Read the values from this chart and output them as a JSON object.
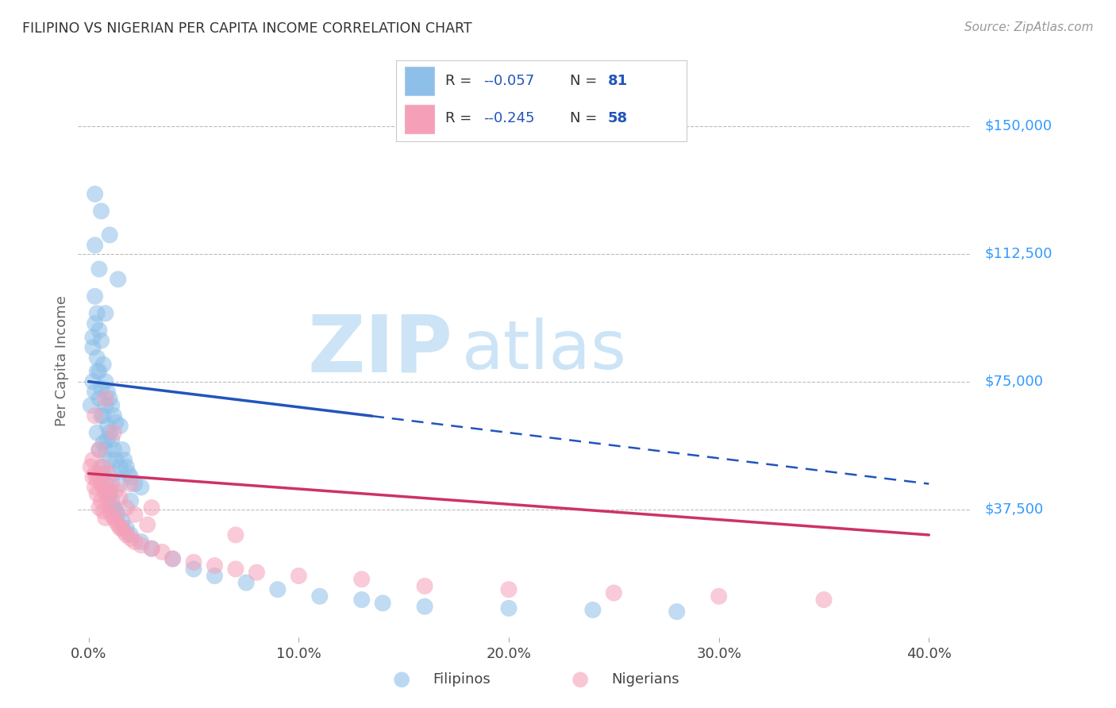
{
  "title": "FILIPINO VS NIGERIAN PER CAPITA INCOME CORRELATION CHART",
  "source": "Source: ZipAtlas.com",
  "ylabel": "Per Capita Income",
  "xtick_labels": [
    "0.0%",
    "10.0%",
    "20.0%",
    "30.0%",
    "40.0%"
  ],
  "xtick_values": [
    0.0,
    0.1,
    0.2,
    0.3,
    0.4
  ],
  "ytick_labels": [
    "$37,500",
    "$75,000",
    "$112,500",
    "$150,000"
  ],
  "ytick_values": [
    37500,
    75000,
    112500,
    150000
  ],
  "ylim": [
    0,
    162000
  ],
  "xlim": [
    -0.005,
    0.42
  ],
  "watermark_zip": "ZIP",
  "watermark_atlas": "atlas",
  "fil_label": "Filipinos",
  "nig_label": "Nigerians",
  "legend_R_fil": "-0.057",
  "legend_N_fil": "81",
  "legend_R_nig": "-0.245",
  "legend_N_nig": "58",
  "filipino_color": "#8dbfe8",
  "nigerian_color": "#f5a0b8",
  "trend_blue_color": "#2255bb",
  "trend_pink_color": "#cc3366",
  "background": "#ffffff",
  "grid_color": "#bbbbbb",
  "title_color": "#333333",
  "source_color": "#999999",
  "axis_label_color": "#666666",
  "ytick_color": "#3399ff",
  "watermark_color": "#cce4f6",
  "legend_R_color": "#2255bb",
  "legend_N_color": "#2255bb",
  "legend_label_color": "#333333",
  "fil_trend_solid_end": 0.135,
  "fil_intercept": 75000,
  "fil_slope": -75000,
  "nig_intercept": 48000,
  "nig_slope": -45000,
  "fil_x": [
    0.001,
    0.002,
    0.002,
    0.003,
    0.003,
    0.003,
    0.004,
    0.004,
    0.005,
    0.005,
    0.005,
    0.006,
    0.006,
    0.006,
    0.007,
    0.007,
    0.008,
    0.008,
    0.008,
    0.009,
    0.009,
    0.01,
    0.01,
    0.01,
    0.011,
    0.011,
    0.012,
    0.012,
    0.013,
    0.013,
    0.014,
    0.015,
    0.015,
    0.016,
    0.017,
    0.018,
    0.019,
    0.02,
    0.022,
    0.025,
    0.002,
    0.003,
    0.004,
    0.005,
    0.006,
    0.007,
    0.008,
    0.009,
    0.01,
    0.011,
    0.012,
    0.013,
    0.014,
    0.016,
    0.018,
    0.02,
    0.025,
    0.03,
    0.04,
    0.05,
    0.06,
    0.075,
    0.09,
    0.11,
    0.13,
    0.14,
    0.16,
    0.2,
    0.24,
    0.28,
    0.02,
    0.008,
    0.012,
    0.006,
    0.004,
    0.007,
    0.01,
    0.015,
    0.003,
    0.005,
    0.009
  ],
  "fil_y": [
    68000,
    75000,
    85000,
    92000,
    100000,
    115000,
    82000,
    95000,
    70000,
    78000,
    108000,
    73000,
    87000,
    125000,
    65000,
    80000,
    68000,
    75000,
    95000,
    62000,
    72000,
    60000,
    70000,
    118000,
    58000,
    68000,
    55000,
    65000,
    52000,
    63000,
    105000,
    50000,
    62000,
    55000,
    52000,
    50000,
    48000,
    47000,
    45000,
    44000,
    88000,
    72000,
    60000,
    55000,
    50000,
    48000,
    45000,
    43000,
    42000,
    40000,
    38000,
    37000,
    36000,
    34000,
    32000,
    30000,
    28000,
    26000,
    23000,
    20000,
    18000,
    16000,
    14000,
    12000,
    11000,
    10000,
    9000,
    8500,
    8000,
    7500,
    40000,
    55000,
    48000,
    65000,
    78000,
    57000,
    52000,
    45000,
    130000,
    90000,
    58000
  ],
  "nig_x": [
    0.001,
    0.002,
    0.002,
    0.003,
    0.003,
    0.004,
    0.004,
    0.005,
    0.005,
    0.006,
    0.006,
    0.007,
    0.007,
    0.008,
    0.008,
    0.009,
    0.01,
    0.01,
    0.011,
    0.012,
    0.013,
    0.014,
    0.015,
    0.016,
    0.017,
    0.018,
    0.02,
    0.022,
    0.025,
    0.03,
    0.035,
    0.04,
    0.05,
    0.06,
    0.07,
    0.08,
    0.1,
    0.13,
    0.16,
    0.2,
    0.25,
    0.3,
    0.35,
    0.003,
    0.005,
    0.007,
    0.009,
    0.011,
    0.013,
    0.015,
    0.018,
    0.022,
    0.028,
    0.008,
    0.012,
    0.02,
    0.03,
    0.07
  ],
  "nig_y": [
    50000,
    47000,
    52000,
    48000,
    44000,
    46000,
    42000,
    48000,
    38000,
    45000,
    40000,
    44000,
    37000,
    42000,
    35000,
    40000,
    38000,
    43000,
    36000,
    35000,
    34000,
    33000,
    32000,
    32000,
    31000,
    30000,
    29000,
    28000,
    27000,
    26000,
    25000,
    23000,
    22000,
    21000,
    20000,
    19000,
    18000,
    17000,
    15000,
    14000,
    13000,
    12000,
    11000,
    65000,
    55000,
    50000,
    48000,
    45000,
    43000,
    41000,
    38000,
    36000,
    33000,
    70000,
    60000,
    45000,
    38000,
    30000
  ]
}
